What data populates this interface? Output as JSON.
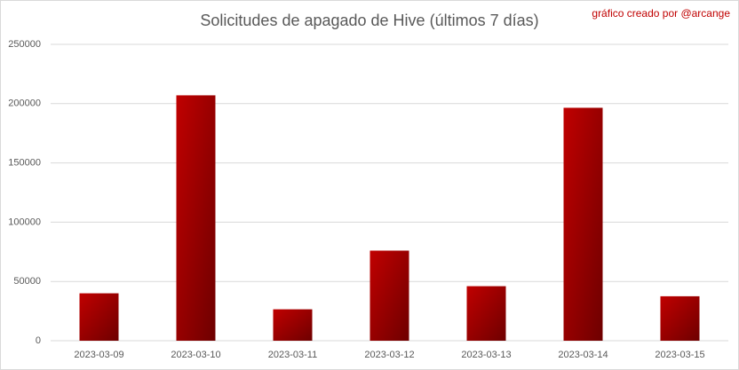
{
  "chart_data": {
    "type": "bar",
    "title": "Solicitudes de apagado de Hive (últimos 7 días)",
    "annotation": "gráfico creado por @arcange",
    "categories": [
      "2023-03-09",
      "2023-03-10",
      "2023-03-11",
      "2023-03-12",
      "2023-03-13",
      "2023-03-14",
      "2023-03-15"
    ],
    "values": [
      40000,
      207000,
      26500,
      76000,
      46000,
      196500,
      37500
    ],
    "color": "#c00000",
    "color_dark": "#6e0000",
    "ylim": [
      0,
      250000
    ],
    "yticks": [
      0,
      50000,
      100000,
      150000,
      200000,
      250000
    ],
    "grid": true
  }
}
